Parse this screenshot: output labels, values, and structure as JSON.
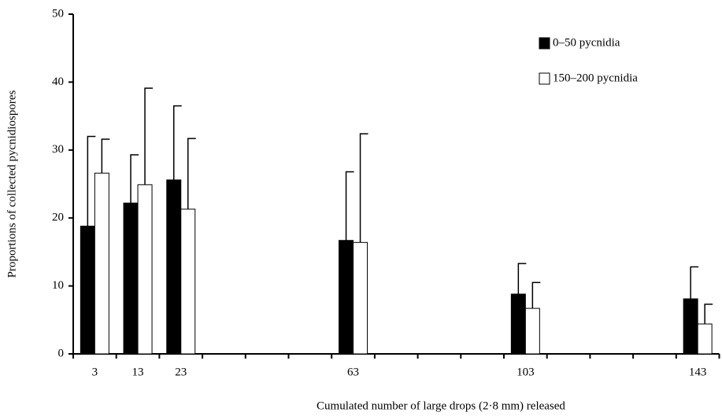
{
  "chart_data": {
    "type": "bar",
    "xlabel": "Cumulated number of large drops (2·8 mm) released",
    "ylabel": "Proportions of collected pycnidiospores",
    "categories": [
      "3",
      "13",
      "23",
      null,
      null,
      null,
      "63",
      null,
      null,
      null,
      "103",
      null,
      null,
      null,
      "143"
    ],
    "series": [
      {
        "name": "0–50 pycnidia",
        "color": "#000000",
        "values": [
          18.8,
          22.2,
          25.6,
          null,
          null,
          null,
          16.7,
          null,
          null,
          null,
          8.8,
          null,
          null,
          null,
          8.1
        ],
        "errors": [
          13.2,
          7.1,
          10.9,
          null,
          null,
          null,
          10.1,
          null,
          null,
          null,
          4.5,
          null,
          null,
          null,
          4.7
        ]
      },
      {
        "name": "150–200 pycnidia",
        "color": "#ffffff",
        "values": [
          26.6,
          24.9,
          21.3,
          null,
          null,
          null,
          16.4,
          null,
          null,
          null,
          6.7,
          null,
          null,
          null,
          4.4
        ],
        "errors": [
          5.0,
          14.2,
          10.4,
          null,
          null,
          null,
          16.0,
          null,
          null,
          null,
          3.8,
          null,
          null,
          null,
          2.9
        ]
      }
    ],
    "ylim": [
      0,
      50
    ],
    "yticks": [
      0,
      10,
      20,
      30,
      40,
      50
    ],
    "legend": "upper right"
  }
}
